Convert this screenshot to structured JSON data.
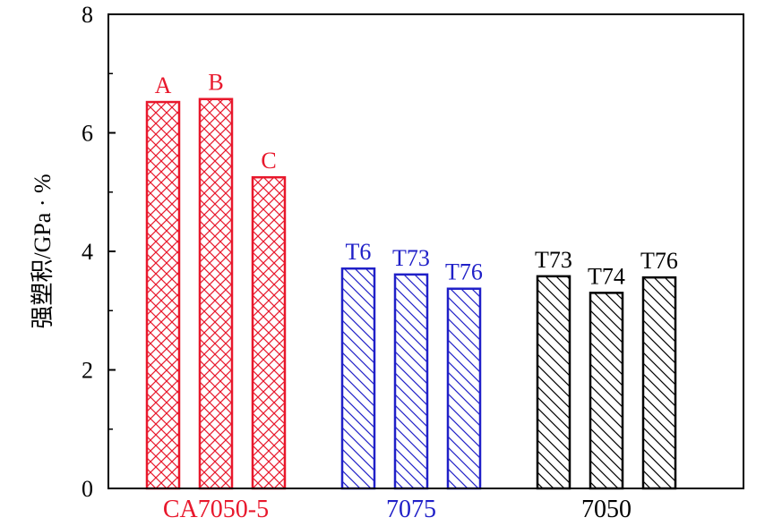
{
  "chart_data": {
    "type": "bar",
    "ylabel": "强塑积/GPa · %",
    "xlabel": "",
    "ylim": [
      0,
      8
    ],
    "yticks": [
      "0",
      "2",
      "4",
      "6",
      "8"
    ],
    "grid": false,
    "groups": [
      {
        "name": "CA7050-5",
        "color": "#e8182c",
        "hatch": "crosshatch",
        "bars": [
          {
            "label": "A",
            "value": 6.52
          },
          {
            "label": "B",
            "value": 6.57
          },
          {
            "label": "C",
            "value": 5.25
          }
        ]
      },
      {
        "name": "7075",
        "color": "#2020c8",
        "hatch": "diagonal",
        "bars": [
          {
            "label": "T6",
            "value": 3.71
          },
          {
            "label": "T73",
            "value": 3.61
          },
          {
            "label": "T76",
            "value": 3.37
          }
        ]
      },
      {
        "name": "7050",
        "color": "#000000",
        "hatch": "diagonal",
        "bars": [
          {
            "label": "T73",
            "value": 3.58
          },
          {
            "label": "T74",
            "value": 3.3
          },
          {
            "label": "T76",
            "value": 3.56
          }
        ]
      }
    ]
  }
}
